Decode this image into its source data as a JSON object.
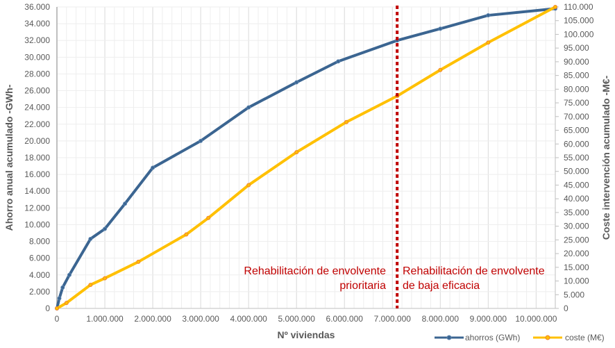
{
  "chart_data": {
    "type": "line",
    "xlabel": "Nº viviendas",
    "ylabel": "Ahorro anual acumulado -GWh-",
    "y2label": "Coste intervención acumulado -M€-",
    "xlim": [
      0,
      10400000
    ],
    "ylim": [
      0,
      36000
    ],
    "y2lim": [
      0,
      110000
    ],
    "x_ticks": [
      0,
      1000000,
      2000000,
      3000000,
      4000000,
      5000000,
      6000000,
      7000000,
      8000000,
      9000000,
      10000000
    ],
    "x_tick_labels": [
      "0",
      "1.000.000",
      "2.000.000",
      "3.000.000",
      "4.000.000",
      "5.000.000",
      "6.000.000",
      "7.000.000",
      "8.000.000",
      "9.000.000",
      "10.000.000"
    ],
    "y_tick_labels": [
      "0",
      "2.000",
      "4.000",
      "6.000",
      "8.000",
      "10.000",
      "12.000",
      "14.000",
      "16.000",
      "18.000",
      "20.000",
      "22.000",
      "24.000",
      "26.000",
      "28.000",
      "30.000",
      "32.000",
      "34.000",
      "36.000"
    ],
    "y2_tick_labels": [
      "0",
      "5.000",
      "10.000",
      "15.000",
      "20.000",
      "25.000",
      "30.000",
      "35.000",
      "40.000",
      "45.000",
      "50.000",
      "55.000",
      "60.000",
      "65.000",
      "70.000",
      "75.000",
      "80.000",
      "85.000",
      "90.000",
      "95.000",
      "100.000",
      "105.000",
      "110.000"
    ],
    "grid": true,
    "legend_position": "bottom-right",
    "series": [
      {
        "name": "ahorros (GWh)",
        "axis": "left",
        "color": "#3b6591",
        "x": [
          0,
          50000,
          120000,
          260000,
          700000,
          1000000,
          1420000,
          2000000,
          3000000,
          4000000,
          5000000,
          5870000,
          7100000,
          8000000,
          9000000,
          10400000
        ],
        "y": [
          0,
          1200,
          2500,
          4000,
          8300,
          9500,
          12500,
          16800,
          20000,
          24000,
          27000,
          29500,
          32000,
          33400,
          35000,
          35800
        ]
      },
      {
        "name": "coste (M€)",
        "axis": "right",
        "color": "#ffc000",
        "x": [
          0,
          200000,
          700000,
          1000000,
          1700000,
          2700000,
          3160000,
          4000000,
          5000000,
          6040000,
          7100000,
          8000000,
          9000000,
          10400000
        ],
        "y": [
          0,
          2000,
          8600,
          11000,
          17000,
          27000,
          33000,
          45000,
          57000,
          68000,
          77500,
          87000,
          97000,
          110000
        ]
      }
    ],
    "threshold_line": {
      "x": 7100000,
      "color": "#c00000"
    },
    "annotations": {
      "left": [
        "Rehabilitación de envolvente",
        "prioritaria"
      ],
      "right": [
        "Rehabilitación de envolvente",
        "de baja eficacia"
      ]
    }
  }
}
